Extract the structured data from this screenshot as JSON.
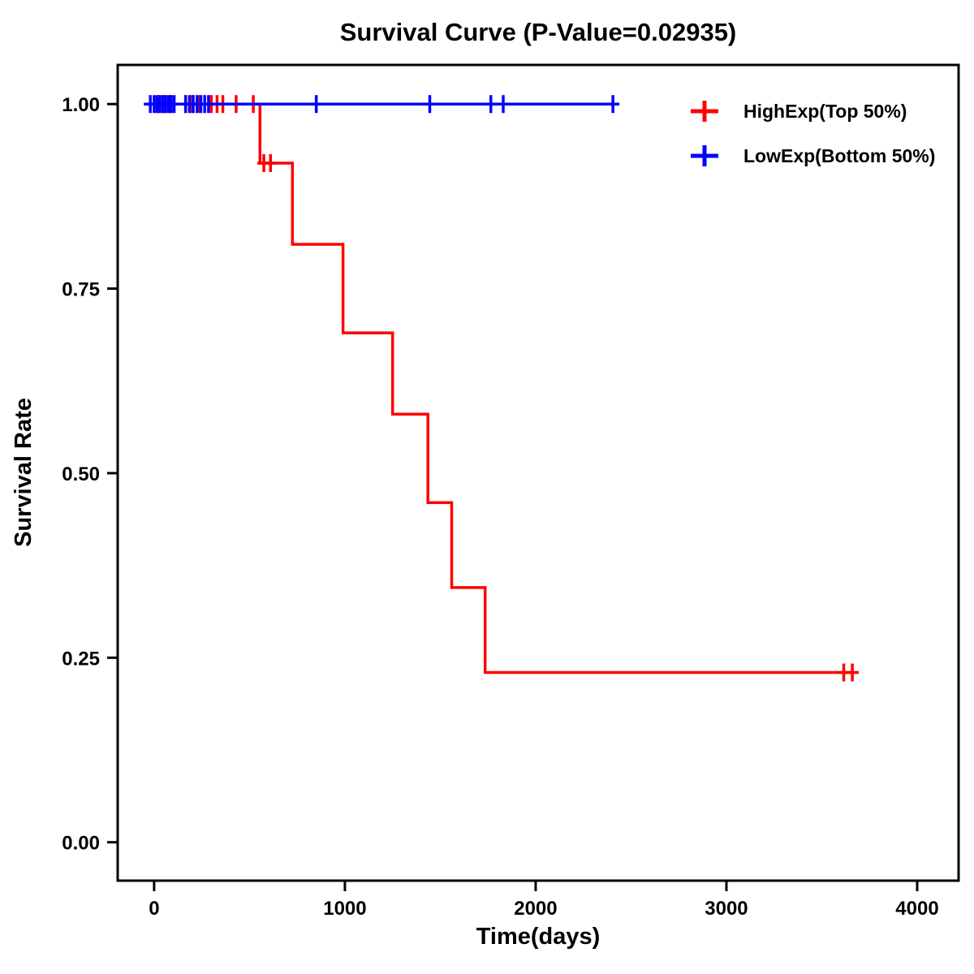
{
  "page": {
    "background_color": "#FFFFFF",
    "text_color": "#000000"
  },
  "chart_data": {
    "type": "line",
    "subtype": "kaplan_meier_step",
    "title": "Survival Curve (P-Value=0.02935)",
    "p_value": "0.02935",
    "xlabel": "Time(days)",
    "ylabel": "Survival Rate",
    "x_range": [
      -191,
      4217
    ],
    "y_range": [
      -0.052,
      1.053
    ],
    "xtick_values": [
      0,
      1000,
      2000,
      3000,
      4000
    ],
    "xtick_labels": [
      "0",
      "1000",
      "2000",
      "3000",
      "4000"
    ],
    "ytick_values": [
      0,
      0.25,
      0.5,
      0.75,
      1.0
    ],
    "ytick_labels": [
      "0.00",
      "0.25",
      "0.50",
      "0.75",
      "1.00"
    ],
    "grid": false,
    "legend_position": "top-right",
    "legend": {
      "items": [
        {
          "label": "HighExp(Top 50%)",
          "color": "#FF0000",
          "marker": "plus"
        },
        {
          "label": "LowExp(Bottom 50%)",
          "color": "#0000FF",
          "marker": "plus"
        }
      ]
    },
    "series": [
      {
        "name": "HighExp(Top 50%)",
        "color": "#FF0000",
        "step_points": [
          [
            0,
            1.0
          ],
          [
            555,
            1.0
          ],
          [
            555,
            0.92
          ],
          [
            725,
            0.92
          ],
          [
            725,
            0.81
          ],
          [
            990,
            0.81
          ],
          [
            990,
            0.69
          ],
          [
            1250,
            0.69
          ],
          [
            1250,
            0.58
          ],
          [
            1435,
            0.58
          ],
          [
            1435,
            0.46
          ],
          [
            1560,
            0.46
          ],
          [
            1560,
            0.345
          ],
          [
            1735,
            0.345
          ],
          [
            1735,
            0.23
          ],
          [
            3660,
            0.23
          ]
        ],
        "censor_marks": [
          [
            25,
            1.0
          ],
          [
            55,
            1.0
          ],
          [
            85,
            1.0
          ],
          [
            165,
            1.0
          ],
          [
            200,
            1.0
          ],
          [
            235,
            1.0
          ],
          [
            300,
            1.0
          ],
          [
            330,
            1.0
          ],
          [
            360,
            1.0
          ],
          [
            430,
            1.0
          ],
          [
            520,
            1.0
          ],
          [
            575,
            0.92
          ],
          [
            610,
            0.92
          ],
          [
            3615,
            0.23
          ],
          [
            3660,
            0.23
          ]
        ]
      },
      {
        "name": "LowExp(Bottom 50%)",
        "color": "#0000FF",
        "step_points": [
          [
            -20,
            1.0
          ],
          [
            2405,
            1.0
          ]
        ],
        "censor_marks": [
          [
            -20,
            1.0
          ],
          [
            0,
            1.0
          ],
          [
            15,
            1.0
          ],
          [
            30,
            1.0
          ],
          [
            45,
            1.0
          ],
          [
            60,
            1.0
          ],
          [
            75,
            1.0
          ],
          [
            90,
            1.0
          ],
          [
            105,
            1.0
          ],
          [
            165,
            1.0
          ],
          [
            185,
            1.0
          ],
          [
            205,
            1.0
          ],
          [
            225,
            1.0
          ],
          [
            245,
            1.0
          ],
          [
            265,
            1.0
          ],
          [
            285,
            1.0
          ],
          [
            850,
            1.0
          ],
          [
            1445,
            1.0
          ],
          [
            1765,
            1.0
          ],
          [
            1830,
            1.0
          ],
          [
            2405,
            1.0
          ]
        ]
      }
    ]
  }
}
